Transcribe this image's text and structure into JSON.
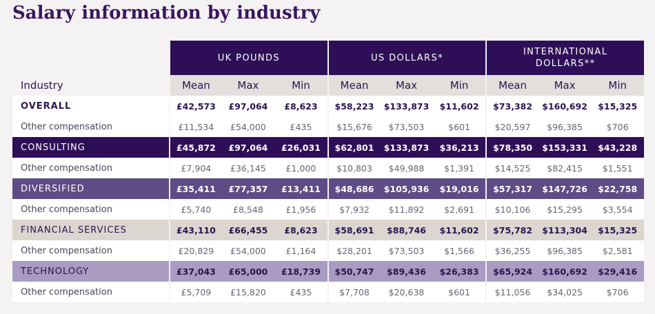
{
  "title": "Salary information by industry",
  "currencies": [
    {
      "label": "UK POUNDS"
    },
    {
      "label": "US DOLLARS*"
    },
    {
      "label": "INTERNATIONAL DOLLARS**"
    }
  ],
  "columns": {
    "industry": "Industry",
    "stats": [
      "Mean",
      "Max",
      "Min",
      "Mean",
      "Max",
      "Min",
      "Mean",
      "Max",
      "Min"
    ]
  },
  "rows": [
    {
      "label": "OVERALL",
      "values": [
        "£42,573",
        "£97,064",
        "£8,623",
        "$58,223",
        "$133,873",
        "$11,602",
        "$73,382",
        "$160,692",
        "$15,325"
      ]
    },
    {
      "label": "Other compensation",
      "values": [
        "£11,534",
        "£54,000",
        "£435",
        "$15,676",
        "$73,503",
        "$601",
        "$20,597",
        "$96,385",
        "$706"
      ]
    },
    {
      "label": "CONSULTING",
      "values": [
        "£45,872",
        "£97,064",
        "£26,031",
        "$62,801",
        "$133,873",
        "$36,213",
        "$78,350",
        "$153,331",
        "$43,228"
      ]
    },
    {
      "label": "Other compensation",
      "values": [
        "£7,904",
        "£36,145",
        "£1,000",
        "$10,803",
        "$49,988",
        "$1,391",
        "$14,525",
        "$82,415",
        "$1,551"
      ]
    },
    {
      "label": "DIVERSIFIED",
      "values": [
        "£35,411",
        "£77,357",
        "£13,411",
        "$48,686",
        "$105,936",
        "$19,016",
        "$57,317",
        "$147,726",
        "$22,758"
      ]
    },
    {
      "label": "Other compensation",
      "values": [
        "£5,740",
        "£8,548",
        "£1,956",
        "$7,932",
        "$11,892",
        "$2,691",
        "$10,106",
        "$15,295",
        "$3,554"
      ]
    },
    {
      "label": "FINANCIAL SERVICES",
      "values": [
        "£43,110",
        "£66,455",
        "£8,623",
        "$58,691",
        "$88,746",
        "$11,602",
        "$75,782",
        "$113,304",
        "$15,325"
      ]
    },
    {
      "label": "Other compensation",
      "values": [
        "£20,829",
        "£54,000",
        "£1,164",
        "$28,201",
        "$73,503",
        "$1,566",
        "$36,255",
        "$96,385",
        "$2,581"
      ]
    },
    {
      "label": "TECHNOLOGY",
      "values": [
        "£37,043",
        "£65,000",
        "£18,739",
        "$50,747",
        "$89,436",
        "$26,383",
        "$65,924",
        "$160,692",
        "$29,416"
      ]
    },
    {
      "label": "Other compensation",
      "values": [
        "£5,709",
        "£15,820",
        "£435",
        "$7,708",
        "$20,638",
        "$601",
        "$11,056",
        "$34,025",
        "$706"
      ]
    }
  ],
  "colors": {
    "dark_purple": "#2e0f57",
    "mid_purple": "#5f4b86",
    "light_purple": "#a99bc2",
    "beige": "#dcd6d0",
    "header_gray": "#e3dfdc"
  }
}
